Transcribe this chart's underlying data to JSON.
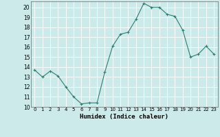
{
  "x": [
    0,
    1,
    2,
    3,
    4,
    5,
    6,
    7,
    8,
    9,
    10,
    11,
    12,
    13,
    14,
    15,
    16,
    17,
    18,
    19,
    20,
    21,
    22,
    23
  ],
  "y": [
    13.7,
    13.0,
    13.6,
    13.1,
    12.0,
    11.0,
    10.3,
    10.4,
    10.4,
    13.5,
    16.1,
    17.3,
    17.5,
    18.8,
    20.4,
    20.0,
    20.0,
    19.3,
    19.1,
    17.7,
    15.0,
    15.3,
    16.1,
    15.3
  ],
  "line_color": "#2e7d6e",
  "marker": "+",
  "marker_size": 3,
  "bg_color": "#cceaea",
  "grid_color": "#ffffff",
  "xlabel": "Humidex (Indice chaleur)",
  "xlim": [
    -0.5,
    23.5
  ],
  "ylim": [
    10,
    20.6
  ],
  "yticks": [
    10,
    11,
    12,
    13,
    14,
    15,
    16,
    17,
    18,
    19,
    20
  ],
  "xticks": [
    0,
    1,
    2,
    3,
    4,
    5,
    6,
    7,
    8,
    9,
    10,
    11,
    12,
    13,
    14,
    15,
    16,
    17,
    18,
    19,
    20,
    21,
    22,
    23
  ]
}
